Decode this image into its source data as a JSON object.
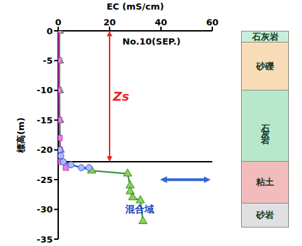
{
  "chart_data": {
    "type": "scatter",
    "title": "No.10(SEP.)",
    "x_label": "EC (mS/cm)",
    "y_label": "標高(m)",
    "xlim": [
      0,
      60
    ],
    "xticks": [
      0,
      20,
      40,
      60
    ],
    "ylim": [
      -35,
      0
    ],
    "yticks": [
      0,
      -5,
      -10,
      -15,
      -20,
      -25,
      -30,
      -35
    ],
    "grid": false,
    "series": [
      {
        "color": "#2e8b2e",
        "marker": "triangle",
        "line_style": "solid",
        "x": [
          0.5,
          0.5,
          0.5,
          0.6,
          0.8,
          1.5,
          13,
          27,
          28,
          28,
          29,
          32,
          33
        ],
        "y": [
          0,
          -5,
          -10,
          -15,
          -20,
          -22,
          -23.5,
          -24,
          -26,
          -27,
          -28,
          -28.5,
          -32
        ]
      },
      {
        "color": "#cc33cc",
        "marker": "square",
        "line_style": "solid",
        "x": [
          0.3,
          0.3,
          0.3,
          0.4,
          0.5,
          0.7,
          1,
          3
        ],
        "y": [
          0,
          -5,
          -10,
          -15,
          -18,
          -20,
          -22,
          -23
        ]
      },
      {
        "color": "#3355cc",
        "marker": "circle",
        "line_style": "solid",
        "x": [
          0.5,
          1,
          2,
          5,
          9,
          12
        ],
        "y": [
          -20,
          -21,
          -22,
          -22.5,
          -23,
          -23
        ]
      }
    ],
    "boundary": -22,
    "zs": {
      "label": "Zs",
      "top": 0,
      "bottom": -22
    },
    "mixing_zone": {
      "label": "混合域",
      "depth": -25
    }
  },
  "column": {
    "layers": [
      {
        "name": "石灰岩",
        "top": 0,
        "bottom": -2
      },
      {
        "name": "砂礫",
        "top": -2,
        "bottom": -10
      },
      {
        "name": "石灰岩",
        "top": -10,
        "bottom": -22
      },
      {
        "name": "粘土",
        "top": -22,
        "bottom": -29
      },
      {
        "name": "砂岩",
        "top": -29,
        "bottom": -33
      }
    ]
  }
}
